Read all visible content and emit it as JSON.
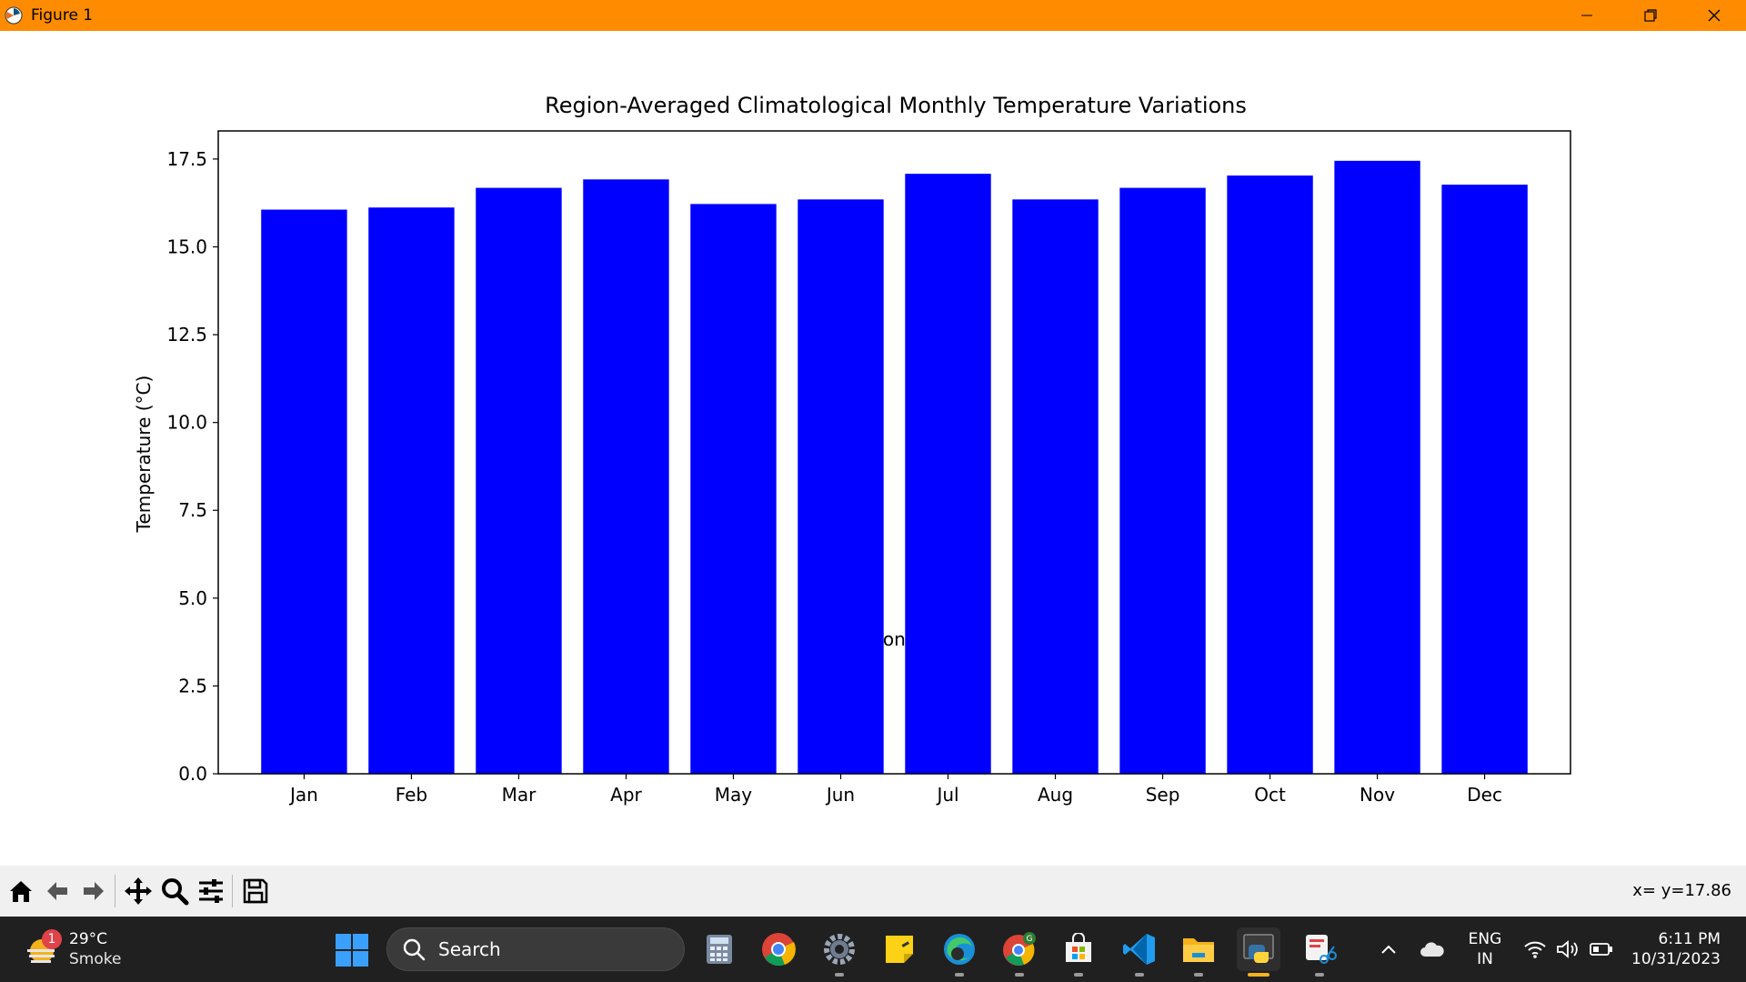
{
  "window": {
    "title": "Figure 1"
  },
  "chart_data": {
    "type": "bar",
    "title": "Region-Averaged Climatological Monthly Temperature Variations",
    "xlabel": "Month",
    "ylabel": "Temperature (°C)",
    "categories": [
      "Jan",
      "Feb",
      "Mar",
      "Apr",
      "May",
      "Jun",
      "Jul",
      "Aug",
      "Sep",
      "Oct",
      "Nov",
      "Dec"
    ],
    "values": [
      16.06,
      16.12,
      16.68,
      16.92,
      16.22,
      16.35,
      17.08,
      16.35,
      16.68,
      17.03,
      17.45,
      16.77
    ],
    "ylim": [
      0,
      18.3
    ],
    "yticks": [
      "0.0",
      "2.5",
      "5.0",
      "7.5",
      "10.0",
      "12.5",
      "15.0",
      "17.5"
    ],
    "ytick_values": [
      0,
      2.5,
      5,
      7.5,
      10,
      12.5,
      15,
      17.5
    ],
    "bar_color": "#0000ff",
    "grid": false,
    "legend": "none"
  },
  "toolbar": {
    "buttons": [
      "home-icon",
      "back-arrow-icon",
      "forward-arrow-icon",
      "pan-icon",
      "zoom-icon",
      "configure-subplots-icon",
      "save-icon"
    ],
    "coord_readout": "x= y=17.86"
  },
  "taskbar": {
    "weather_badge": "1",
    "weather_temp": "29°C",
    "weather_desc": "Smoke",
    "search_placeholder": "Search",
    "language_line1": "ENG",
    "language_line2": "IN",
    "time": "6:11 PM",
    "date": "10/31/2023",
    "apps": [
      "calculator-icon",
      "chrome-icon",
      "settings-icon",
      "sticky-notes-icon",
      "edge-icon",
      "chrome-profile-icon",
      "microsoft-store-icon",
      "vscode-icon",
      "file-explorer-icon",
      "python-icon",
      "snipping-tool-icon"
    ]
  }
}
